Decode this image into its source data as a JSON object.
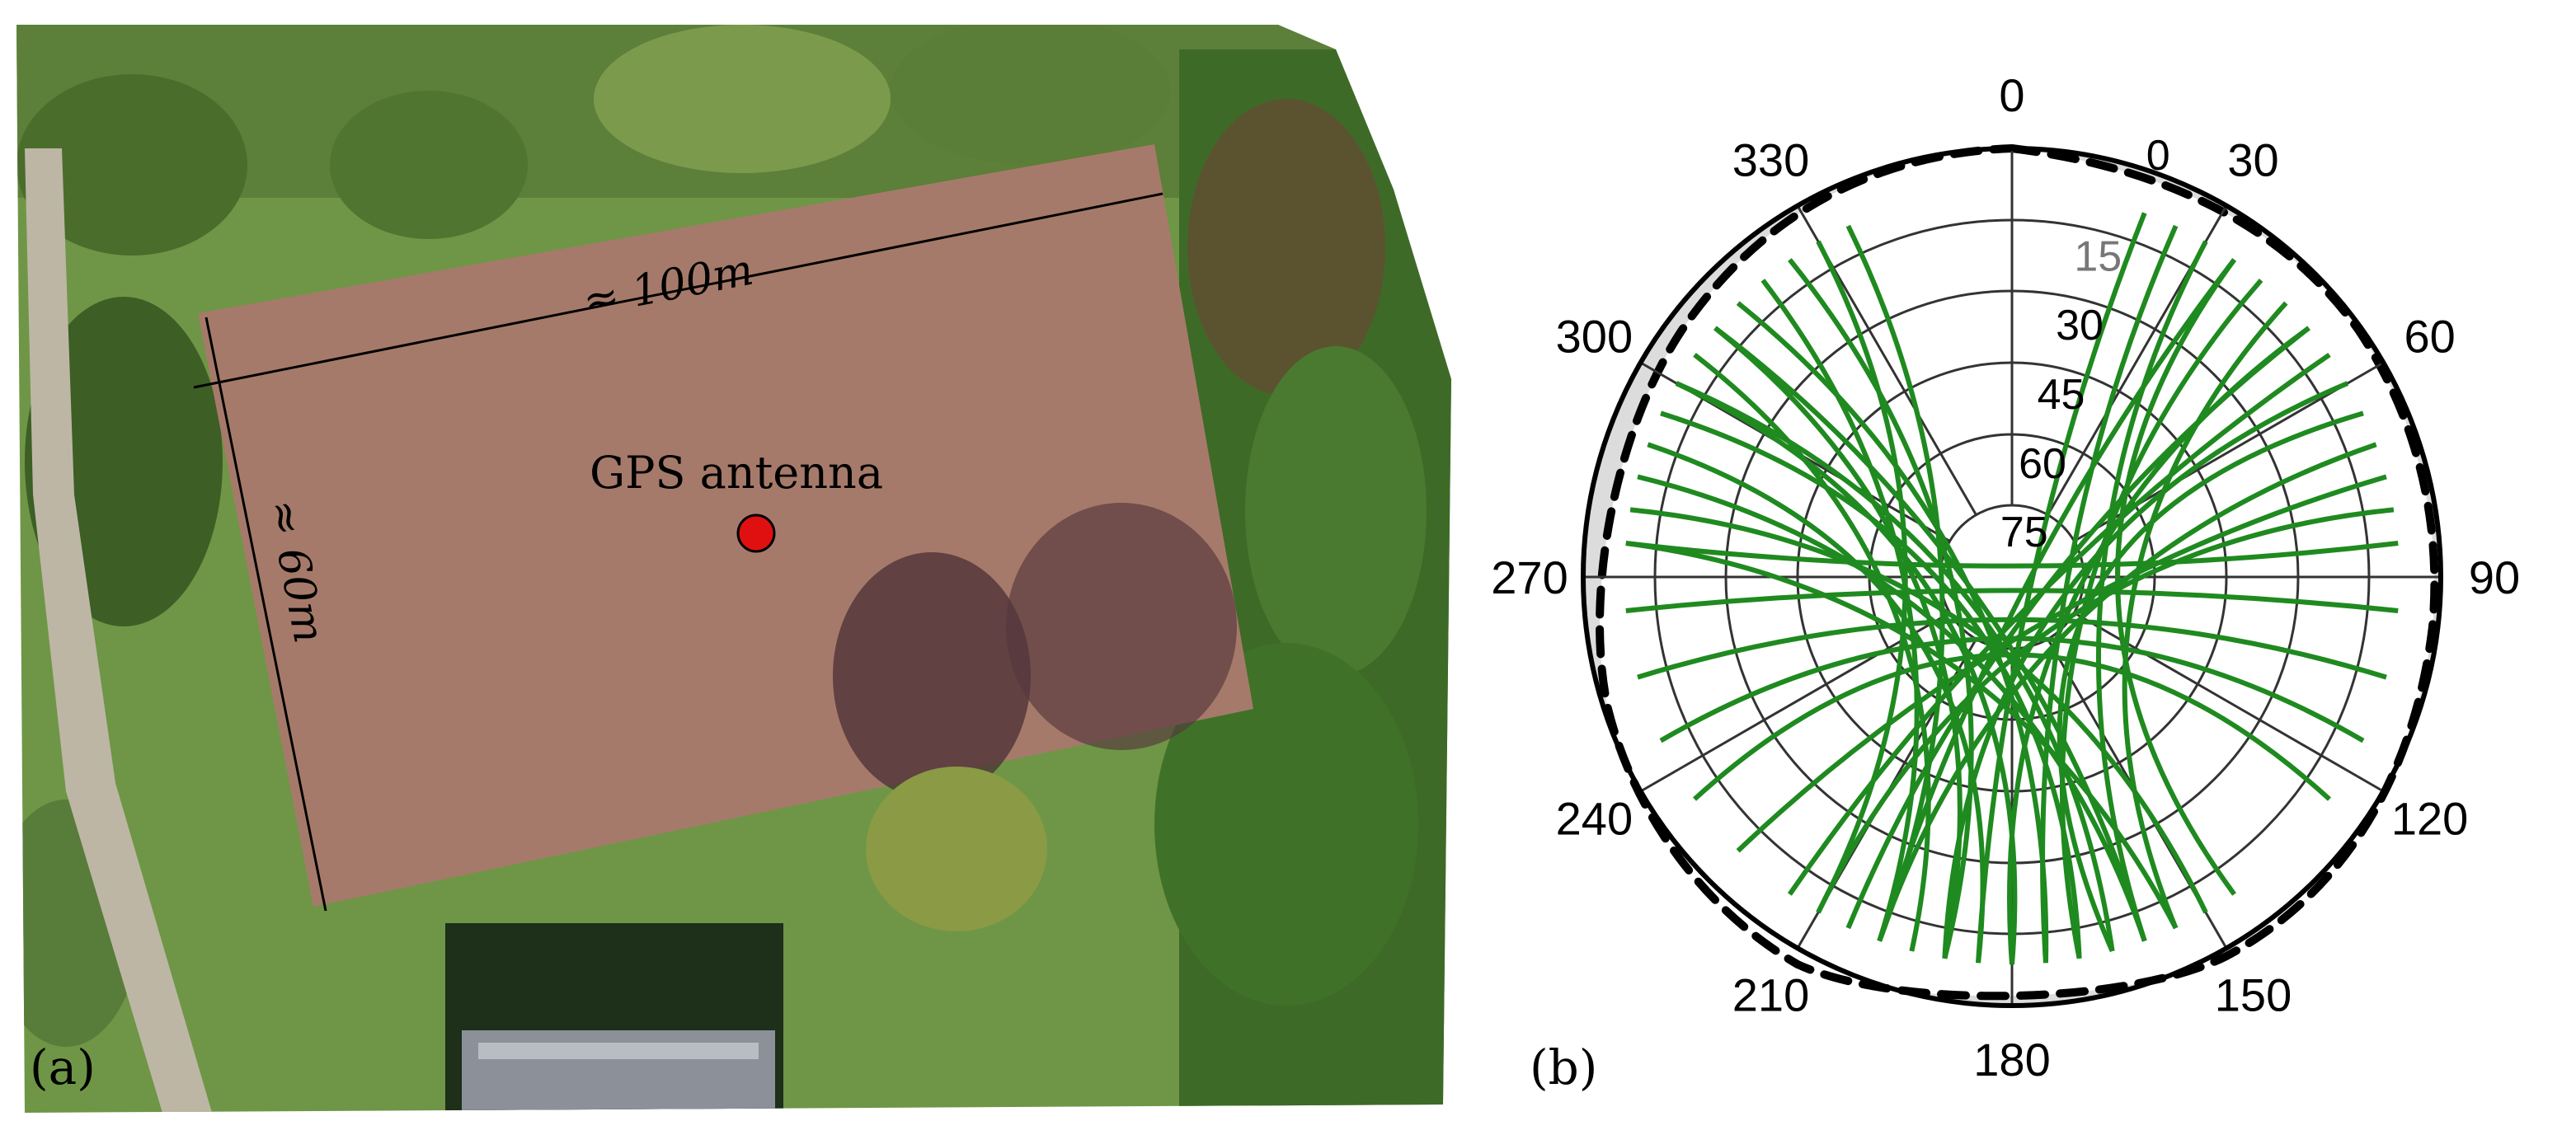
{
  "panel_a": {
    "label": "(a)",
    "antenna_label": "GPS antenna",
    "width_label": "≈ 100m",
    "height_label": "≈ 60m"
  },
  "panel_b": {
    "label": "(b)",
    "azimuth_labels": [
      "0",
      "30",
      "60",
      "90",
      "120",
      "150",
      "180",
      "210",
      "240",
      "270",
      "300",
      "330"
    ],
    "elevation_labels": [
      "0",
      "15",
      "30",
      "45",
      "60",
      "75"
    ]
  },
  "colors": {
    "field": "#a67a6a",
    "grass": "#5f8a3a",
    "trees": "#3f6a2a",
    "antenna": "#e01010",
    "trajectory": "#1f8a1f",
    "mask": "#dcdcdc"
  }
}
